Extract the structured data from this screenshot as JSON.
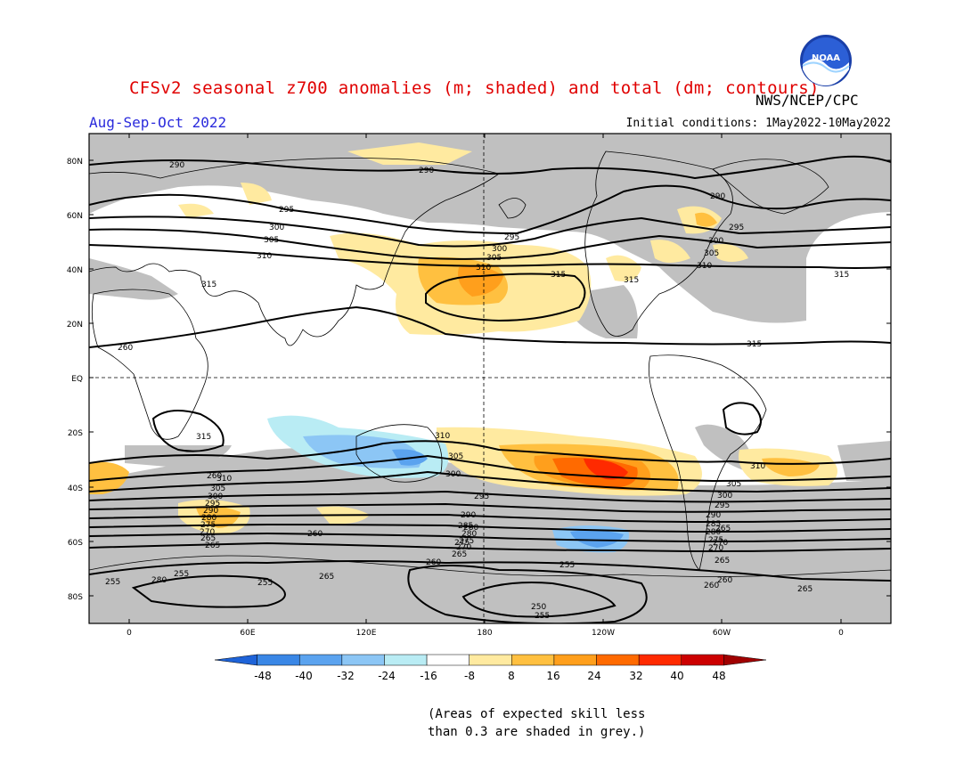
{
  "header": {
    "title": "CFSv2 seasonal z700 anomalies (m; shaded) and total (dm; contours)",
    "org": "NWS/NCEP/CPC",
    "season": "Aug-Sep-Oct 2022",
    "initial_conditions": "Initial conditions: 1May2022-10May2022",
    "logo_text": "NOAA"
  },
  "axes": {
    "lat_labels": [
      "80N",
      "60N",
      "40N",
      "20N",
      "EQ",
      "20S",
      "40S",
      "60S",
      "80S"
    ],
    "lon_labels": [
      "0",
      "60E",
      "120E",
      "180",
      "120W",
      "60W",
      "0"
    ]
  },
  "colorbar": {
    "ticks": [
      "-48",
      "-40",
      "-32",
      "-24",
      "-16",
      "-8",
      "8",
      "16",
      "24",
      "32",
      "40",
      "48"
    ],
    "colors": [
      "#1e63d8",
      "#3a87e6",
      "#5ba3ef",
      "#8cc6f5",
      "#b9ecf4",
      "#ffffff",
      "#ffeaa0",
      "#ffc040",
      "#ff9f1c",
      "#ff6a00",
      "#ff2a00",
      "#cc0000",
      "#a00000"
    ]
  },
  "contours": {
    "labels": [
      "290",
      "290",
      "290",
      "295",
      "295",
      "295",
      "300",
      "300",
      "300",
      "305",
      "305",
      "305",
      "310",
      "310",
      "310",
      "315",
      "315",
      "315",
      "315",
      "315",
      "310",
      "305",
      "300",
      "295",
      "290",
      "285",
      "280",
      "275",
      "270",
      "265",
      "260",
      "255",
      "250",
      "255",
      "260",
      "255",
      "280",
      "255",
      "265",
      "260",
      "265",
      "310",
      "305",
      "300",
      "295",
      "290",
      "285",
      "280",
      "275",
      "270",
      "265",
      "260",
      "265",
      "315",
      "310",
      "305",
      "300",
      "295",
      "290",
      "280",
      "275",
      "270",
      "265",
      "260",
      "255",
      "260",
      "265",
      "270",
      "275",
      "280"
    ]
  },
  "footnote": {
    "line1": "(Areas of expected skill less",
    "line2": "than 0.3 are shaded in grey.)"
  }
}
